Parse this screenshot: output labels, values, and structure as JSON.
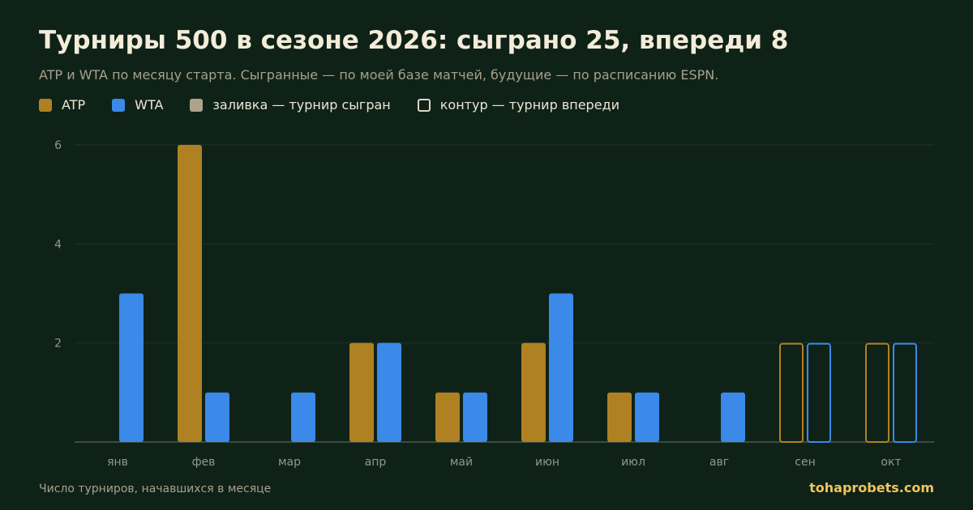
{
  "title": "Турниры 500 в сезоне 2026: сыграно 25, впереди 8",
  "subtitle": "ATP и WTA по месяцу старта. Сыгранные — по моей базе матчей, будущие — по расписанию ESPN.",
  "legend": {
    "atp": "ATP",
    "wta": "WTA",
    "played": "заливка — турнир сыгран",
    "upcoming": "контур — турнир впереди"
  },
  "footnote": "Число турниров, начавшихся в месяце",
  "brand": "tohaprobets.com",
  "colors": {
    "atp": "#b08122",
    "wta": "#3b89e8",
    "background": "#0f2218",
    "grid": "#1f3528",
    "axis_text": "#8f9a8c"
  },
  "chart_data": {
    "type": "bar",
    "categories": [
      "янв",
      "фев",
      "мар",
      "апр",
      "май",
      "июн",
      "июл",
      "авг",
      "сен",
      "окт"
    ],
    "series": [
      {
        "name": "ATP",
        "values": [
          0,
          6,
          0,
          2,
          1,
          2,
          1,
          0,
          2,
          2
        ]
      },
      {
        "name": "WTA",
        "values": [
          3,
          1,
          1,
          2,
          1,
          3,
          1,
          1,
          2,
          2
        ]
      }
    ],
    "status": [
      "played",
      "played",
      "played",
      "played",
      "played",
      "played",
      "played",
      "played",
      "upcoming",
      "upcoming"
    ],
    "yticks": [
      2,
      4,
      6
    ],
    "ylim": [
      0,
      6
    ],
    "grid": true,
    "legend_position": "top-left"
  }
}
